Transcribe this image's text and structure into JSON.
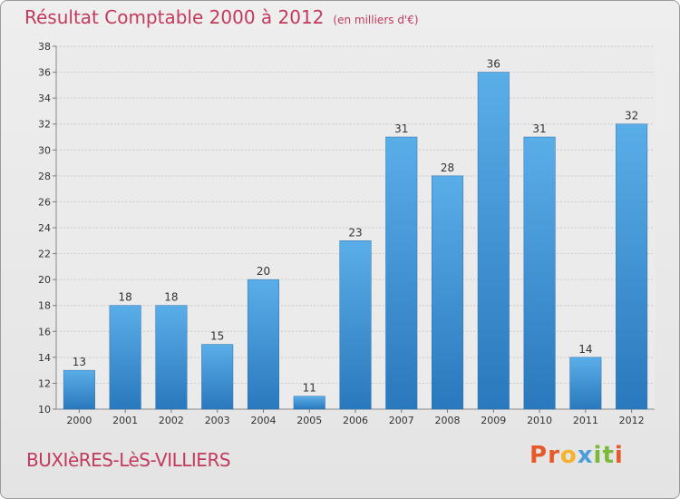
{
  "header": {
    "title": "Résultat Comptable 2000 à 2012",
    "unit": "(en milliers d'€)"
  },
  "footer": {
    "commune": "BUXIèRES-LèS-VILLIERS",
    "logo": {
      "letters": [
        "P",
        "r",
        "o",
        "x",
        "i",
        "t",
        "i"
      ],
      "colors": [
        "#e8592a",
        "#e8592a",
        "#f6b22a",
        "#4b9ed8",
        "#7cb83a",
        "#7cb83a",
        "#e8592a"
      ]
    }
  },
  "chart_data": {
    "type": "bar",
    "categories": [
      "2000",
      "2001",
      "2002",
      "2003",
      "2004",
      "2005",
      "2006",
      "2007",
      "2008",
      "2009",
      "2010",
      "2011",
      "2012"
    ],
    "values": [
      13,
      18,
      18,
      15,
      20,
      11,
      23,
      31,
      28,
      36,
      31,
      14,
      32
    ],
    "ylim": [
      10,
      38
    ],
    "yticks": [
      10,
      12,
      14,
      16,
      18,
      20,
      22,
      24,
      26,
      28,
      30,
      32,
      34,
      36,
      38
    ],
    "grid": true,
    "data_labels": true,
    "bar_color": "#3a8fd4"
  }
}
